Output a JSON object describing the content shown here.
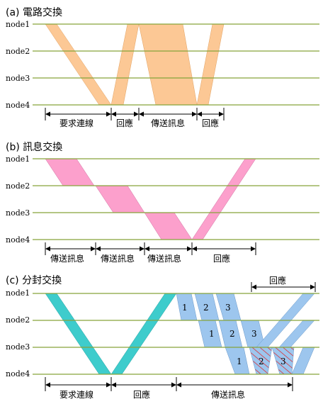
{
  "sections": {
    "a": {
      "title": "(a) 電路交換",
      "nodes": [
        "node1",
        "node2",
        "node3",
        "node4"
      ],
      "labels": [
        "要求連線",
        "回應",
        "傳送訊息",
        "回應"
      ],
      "fill": "#fcc895"
    },
    "b": {
      "title": "(b) 訊息交換",
      "nodes": [
        "node1",
        "node2",
        "node3",
        "node4"
      ],
      "labels": [
        "傳送訊息",
        "傳送訊息",
        "傳送訊息",
        "回應"
      ],
      "fill": "#fca0cc"
    },
    "c": {
      "title": "(c) 分封交換",
      "nodes": [
        "node1",
        "node2",
        "node3",
        "node4"
      ],
      "labels": [
        "要求連線",
        "回應",
        "傳送訊息"
      ],
      "top_label": "回應",
      "packet_labels": [
        "1",
        "2",
        "3",
        "1",
        "2",
        "3",
        "1",
        "2",
        "3"
      ],
      "fill_connect": "#3ecccc",
      "fill_packets": "#9dc6ee"
    }
  },
  "colors": {
    "node_line": "#86a33b",
    "arrow": "#000000",
    "hatch": "#e02020"
  }
}
